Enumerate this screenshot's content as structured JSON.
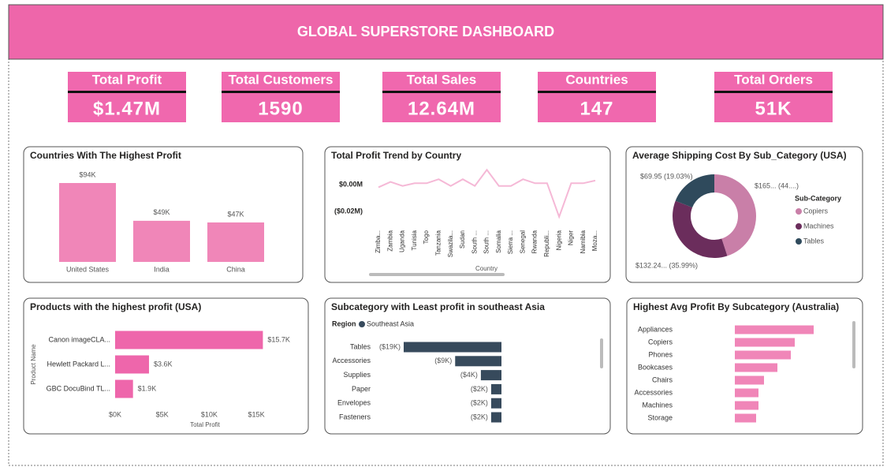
{
  "header": {
    "title": "GLOBAL SUPERSTORE DASHBOARD"
  },
  "kpis": [
    {
      "label": "Total Profit",
      "value": "$1.47M"
    },
    {
      "label": "Total Customers",
      "value": 1590
    },
    {
      "label": "Total Sales",
      "value": "12.64M"
    },
    {
      "label": "Countries",
      "value": 147
    },
    {
      "label": "Total Orders",
      "value": "51K"
    }
  ],
  "chart_data": [
    {
      "type": "bar",
      "title": "Countries With The Highest Profit",
      "categories": [
        "United States",
        "India",
        "China"
      ],
      "values": [
        94,
        49,
        47
      ],
      "value_labels": [
        "$94K",
        "$49K",
        "$47K"
      ],
      "color": "#f086b8"
    },
    {
      "type": "line",
      "title": "Total Profit Trend by Country",
      "x_label": "Country",
      "categories": [
        "Zimba...",
        "Zambia",
        "Uganda",
        "Tunisia",
        "Togo",
        "Tanzania",
        "Swazila...",
        "Sudan",
        "South ...",
        "South ...",
        "Somalia",
        "Sierra ...",
        "Senegal",
        "Rwanda",
        "Republi...",
        "Nigeria",
        "Niger",
        "Namibia",
        "Moza..."
      ],
      "values": [
        -0.002,
        0.002,
        -0.001,
        0.001,
        0.001,
        0.004,
        -0.001,
        0.004,
        -0.001,
        0.011,
        -0.001,
        -0.001,
        0.004,
        0.001,
        0.001,
        -0.024,
        0.001,
        0.001,
        0.003
      ],
      "ylim": [
        -0.025,
        0.012
      ],
      "yticks": [
        {
          "value": 0,
          "label": "$0.00M"
        },
        {
          "value": -0.02,
          "label": "($0.02M)"
        }
      ],
      "color": "#f5b8d6"
    },
    {
      "type": "donut",
      "title": "Average Shipping Cost By Sub_Category (USA)",
      "legend_title": "Sub-Category",
      "categories": [
        "Copiers",
        "Machines",
        "Tables"
      ],
      "values": [
        165.27,
        132.24,
        69.95
      ],
      "value_labels": [
        "$165... (44....)",
        "$132.24... (35.99%)",
        "$69.95 (19.03%)"
      ],
      "colors": [
        "#c97fa8",
        "#6b2d5c",
        "#2f4a5c"
      ]
    },
    {
      "type": "hbar",
      "title": "Products with the highest profit (USA)",
      "x_label": "Total Profit",
      "y_label": "Product Name",
      "categories": [
        "Canon imageCLA...",
        "Hewlett Packard L...",
        "GBC DocuBind TL..."
      ],
      "values": [
        15700,
        3600,
        1900
      ],
      "value_labels": [
        "$15.7K",
        "$3.6K",
        "$1.9K"
      ],
      "xlim": [
        0,
        16000
      ],
      "xticks": [
        {
          "value": 0,
          "label": "$0K"
        },
        {
          "value": 5000,
          "label": "$5K"
        },
        {
          "value": 10000,
          "label": "$10K"
        },
        {
          "value": 15000,
          "label": "$15K"
        }
      ],
      "color": "#ee66ab"
    },
    {
      "type": "hbar",
      "title": "Subcategory with Least profit in southeast Asia",
      "legend_title": "Region",
      "categories": [
        "Tables",
        "Accessories",
        "Supplies",
        "Paper",
        "Envelopes",
        "Fasteners"
      ],
      "series": [
        {
          "name": "Southeast Asia",
          "color": "#374a5c",
          "values": [
            -19,
            -9,
            -4,
            -2,
            -2,
            -2
          ],
          "value_labels": [
            "($19K)",
            "($9K)",
            "($4K)",
            "($2K)",
            "($2K)",
            "($2K)"
          ]
        }
      ]
    },
    {
      "type": "hbar",
      "title": "Highest Avg Profit By Subcategory (Australia)",
      "categories": [
        "Appliances",
        "Copiers",
        "Phones",
        "Bookcases",
        "Chairs",
        "Accessories",
        "Machines",
        "Storage"
      ],
      "values": [
        100,
        76,
        71,
        54,
        37,
        30,
        30,
        27
      ],
      "color": "#f086b8"
    }
  ]
}
